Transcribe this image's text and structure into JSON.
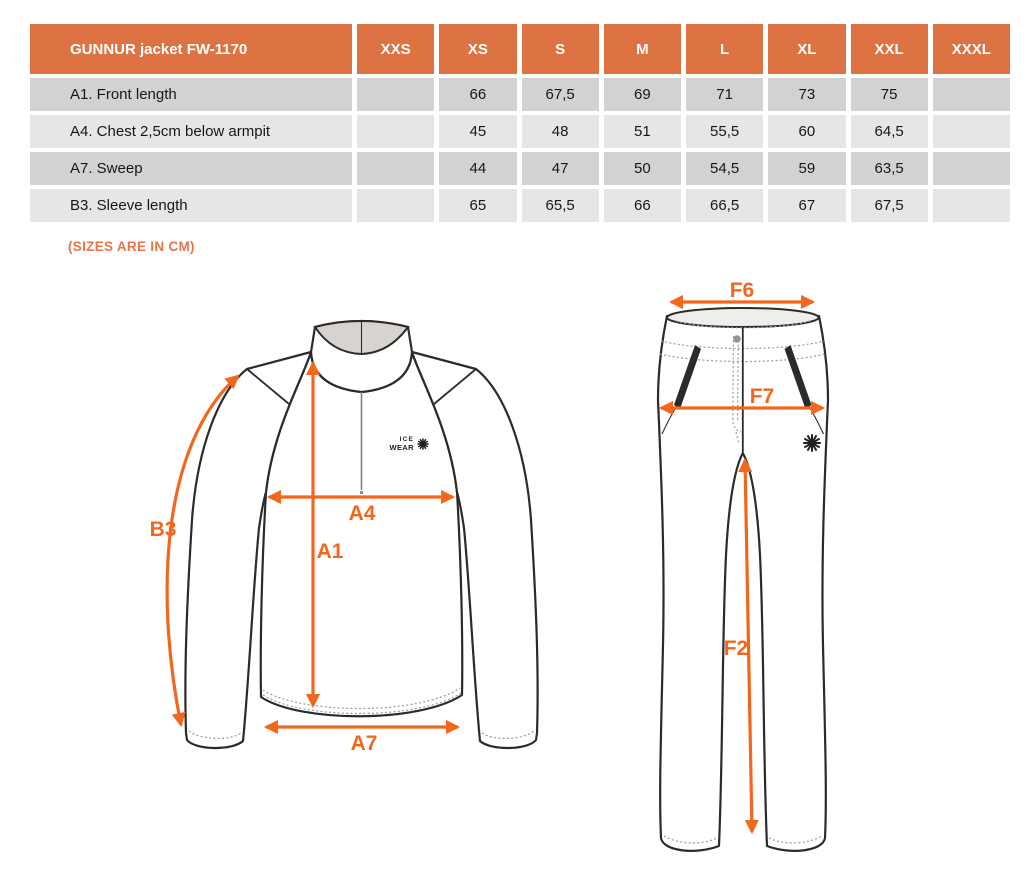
{
  "table": {
    "title": "GUNNUR jacket FW-1170",
    "size_headers": [
      "XXS",
      "XS",
      "S",
      "M",
      "L",
      "XL",
      "XXL",
      "XXXL"
    ],
    "rows": [
      {
        "label": "A1. Front length",
        "values": [
          "",
          "66",
          "67,5",
          "69",
          "71",
          "73",
          "75",
          ""
        ]
      },
      {
        "label": "A4. Chest 2,5cm below armpit",
        "values": [
          "",
          "45",
          "48",
          "51",
          "55,5",
          "60",
          "64,5",
          ""
        ]
      },
      {
        "label": "A7. Sweep",
        "values": [
          "",
          "44",
          "47",
          "50",
          "54,5",
          "59",
          "63,5",
          ""
        ]
      },
      {
        "label": "B3. Sleeve length",
        "values": [
          "",
          "65",
          "65,5",
          "66",
          "66,5",
          "67",
          "67,5",
          ""
        ]
      }
    ]
  },
  "note": "(SIZES ARE IN CM)",
  "jacket_diagram": {
    "logo": {
      "line1": "ICE",
      "line2": "WEAR"
    },
    "measure_labels": {
      "sleeve_length": "B3",
      "chest": "A4",
      "front_length": "A1",
      "sweep": "A7"
    }
  },
  "pants_diagram": {
    "measure_labels": {
      "waist_width": "F6",
      "hip_width": "F7",
      "inseam": "F2"
    }
  },
  "colors": {
    "table_header_orange": "#DD7342",
    "note_orange": "#E8744A",
    "arrow_orange": "#F3671D",
    "row_shade_dark": "#D2D2D1",
    "row_shade_light": "#E6E6E5",
    "drawing_line": "#2B2B29",
    "collar_gray": "#D7D4D0"
  }
}
